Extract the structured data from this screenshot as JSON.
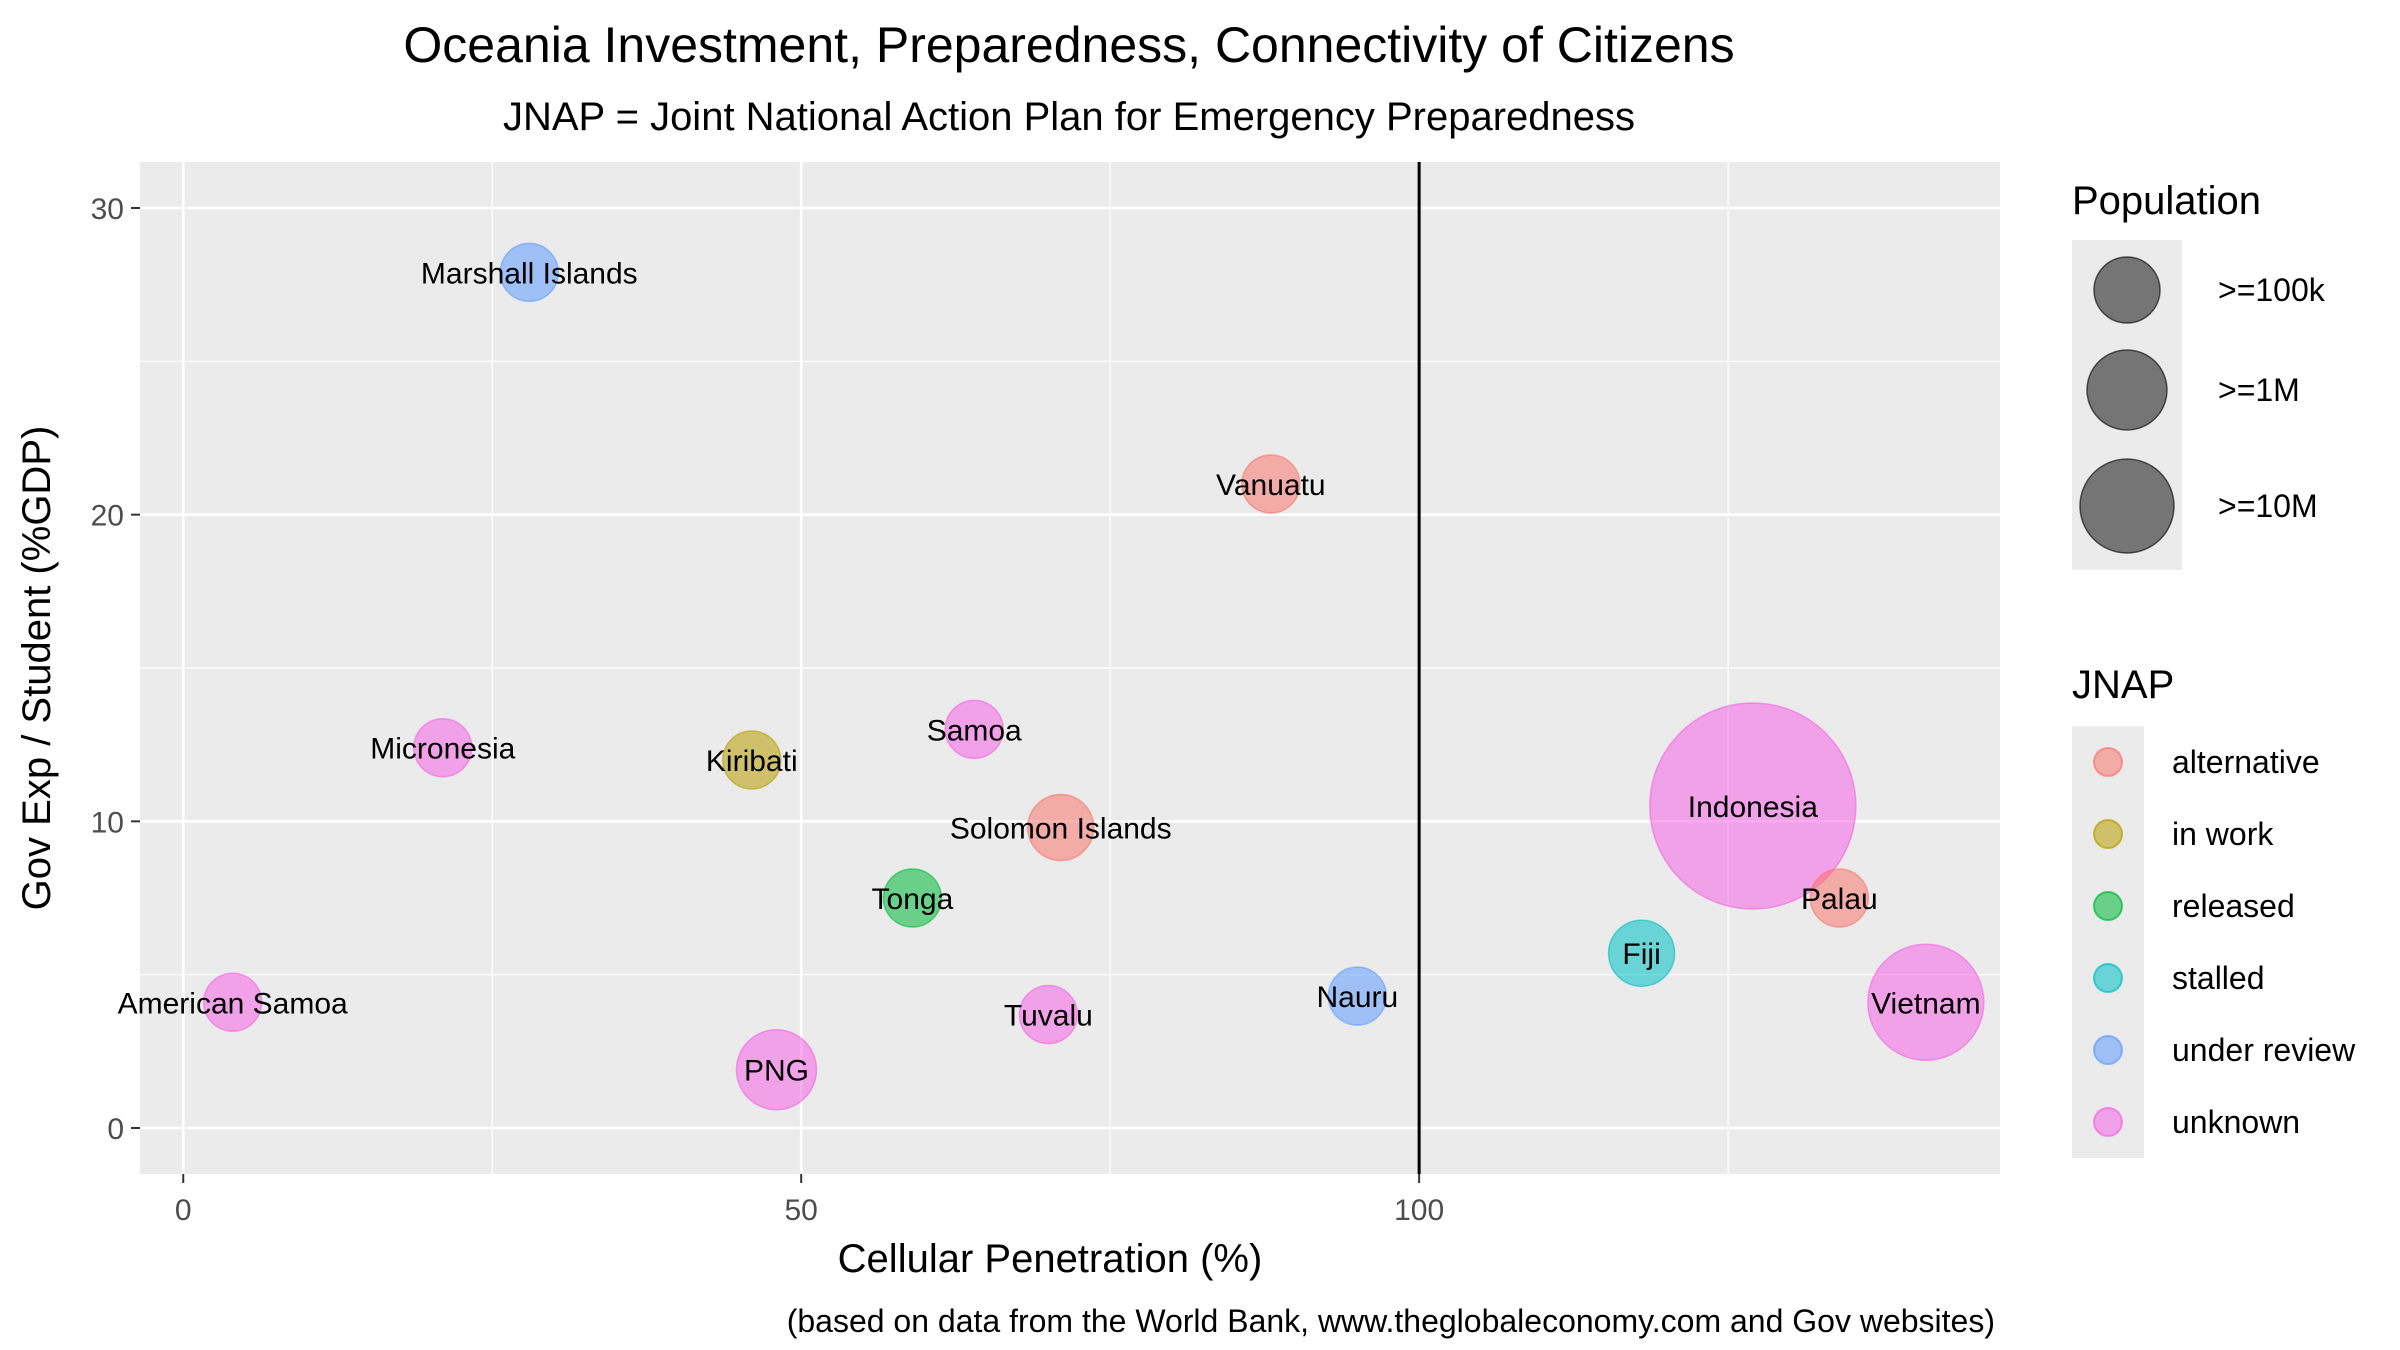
{
  "chart_data": {
    "type": "scatter",
    "title": "Oceania Investment, Preparedness, Connectivity of Citizens",
    "subtitle": "JNAP = Joint National Action Plan for Emergency Preparedness",
    "xlabel": "Cellular Penetration (%)",
    "ylabel": "Gov Exp / Student (%GDP)",
    "caption": "(based on data from the World Bank, www.theglobaleconomy.com and Gov websites)",
    "xlim": [
      -3.5,
      147
    ],
    "ylim": [
      -1.5,
      31.5
    ],
    "x_ticks": [
      0,
      50,
      100
    ],
    "y_ticks": [
      0,
      10,
      20,
      30
    ],
    "reference_line": {
      "x": 100
    },
    "grid": true,
    "legend_position": "right",
    "size_legend": {
      "title": "Population",
      "labels": [
        ">=100k",
        ">=1M",
        ">=10M"
      ]
    },
    "color_legend": {
      "title": "JNAP",
      "entries": [
        {
          "label": "alternative",
          "color": "#F8766D"
        },
        {
          "label": "in work",
          "color": "#B79F00"
        },
        {
          "label": "released",
          "color": "#00BA38"
        },
        {
          "label": "stalled",
          "color": "#00BFC4"
        },
        {
          "label": "under review",
          "color": "#619CFF"
        },
        {
          "label": "unknown",
          "color": "#F564E3"
        }
      ]
    },
    "points": [
      {
        "label": "Marshall Islands",
        "x": 28,
        "y": 27.9,
        "jnap": "under review",
        "size_class": 0
      },
      {
        "label": "Vanuatu",
        "x": 88,
        "y": 21,
        "jnap": "alternative",
        "size_class": 0
      },
      {
        "label": "Micronesia",
        "x": 21,
        "y": 12.4,
        "jnap": "unknown",
        "size_class": 0
      },
      {
        "label": "Kiribati",
        "x": 46,
        "y": 12,
        "jnap": "in work",
        "size_class": 0
      },
      {
        "label": "Samoa",
        "x": 64,
        "y": 13,
        "jnap": "unknown",
        "size_class": 0
      },
      {
        "label": "Solomon Islands",
        "x": 71,
        "y": 9.8,
        "jnap": "alternative",
        "size_class": 1
      },
      {
        "label": "Tonga",
        "x": 59,
        "y": 7.5,
        "jnap": "released",
        "size_class": 0
      },
      {
        "label": "American Samoa",
        "x": 4,
        "y": 4.1,
        "jnap": "unknown",
        "size_class": 0
      },
      {
        "label": "Tuvalu",
        "x": 70,
        "y": 3.7,
        "jnap": "unknown",
        "size_class": 0
      },
      {
        "label": "PNG",
        "x": 48,
        "y": 1.9,
        "jnap": "unknown",
        "size_class": 2
      },
      {
        "label": "Nauru",
        "x": 95,
        "y": 4.3,
        "jnap": "under review",
        "size_class": 0
      },
      {
        "label": "Fiji",
        "x": 118,
        "y": 5.7,
        "jnap": "stalled",
        "size_class": 1
      },
      {
        "label": "Indonesia",
        "x": 127,
        "y": 10.5,
        "jnap": "unknown",
        "size_class": 4
      },
      {
        "label": "Palau",
        "x": 134,
        "y": 7.5,
        "jnap": "alternative",
        "size_class": 0
      },
      {
        "label": "Vietnam",
        "x": 141,
        "y": 4.1,
        "jnap": "unknown",
        "size_class": 3
      }
    ]
  }
}
